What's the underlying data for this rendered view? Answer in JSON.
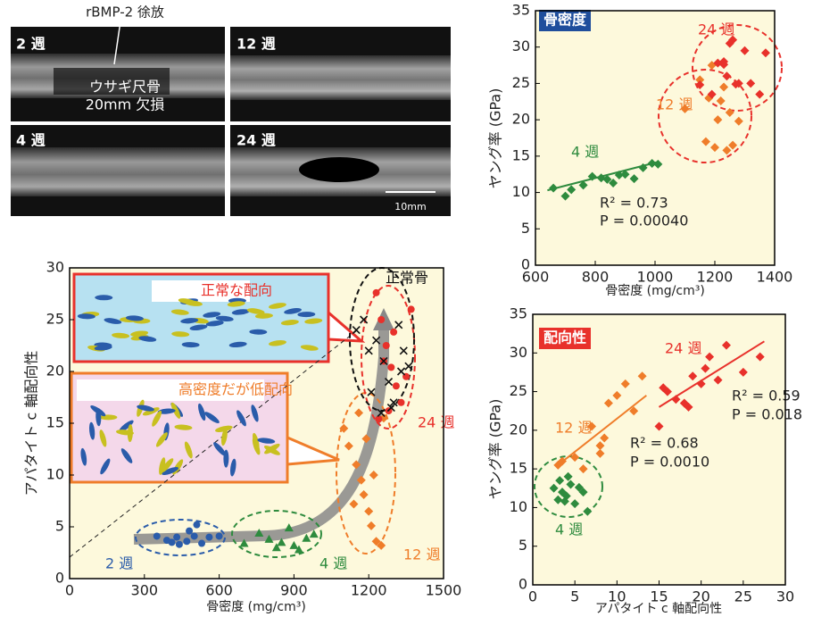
{
  "image_panel": {
    "labels": [
      "2 週",
      "12 週",
      "4 週",
      "24 週"
    ],
    "annotation": "rBMP-2 徐放",
    "defect": [
      "ウサギ尺骨",
      "20mm 欠損"
    ],
    "scale": "10mm"
  },
  "chart_data": [
    {
      "type": "scatter",
      "x_label": "骨密度 (mg/cm³)",
      "y_label": "アパタイト c 軸配向性",
      "xlim": [
        0,
        1500
      ],
      "xticks": [
        0,
        300,
        600,
        900,
        1200,
        1500
      ],
      "ylim": [
        0,
        30
      ],
      "yticks": [
        0,
        5,
        10,
        15,
        20,
        25,
        30
      ],
      "series": [
        {
          "name": "2 週",
          "color": "#2a5caa",
          "marker": "circle",
          "x": [
            350,
            390,
            430,
            470,
            500,
            480,
            510,
            530,
            560,
            600,
            440,
            410
          ],
          "y": [
            4.1,
            3.7,
            4.0,
            3.6,
            4.1,
            4.6,
            5.2,
            3.4,
            4.0,
            4.1,
            3.3,
            3.5
          ]
        },
        {
          "name": "4 週",
          "color": "#2e8b3e",
          "marker": "triangle",
          "x": [
            700,
            760,
            800,
            830,
            850,
            880,
            900,
            920,
            950,
            980
          ],
          "y": [
            3.4,
            4.4,
            3.8,
            3.0,
            3.5,
            4.9,
            3.2,
            2.8,
            3.9,
            4.3
          ]
        },
        {
          "name": "12 週",
          "color": "#ef7d2a",
          "marker": "diamond",
          "x": [
            1100,
            1120,
            1150,
            1170,
            1180,
            1200,
            1210,
            1230,
            1250,
            1160,
            1140,
            1190,
            1220,
            1260
          ],
          "y": [
            14.5,
            12.8,
            11.0,
            9.5,
            8.1,
            6.5,
            5.1,
            3.6,
            3.2,
            16.0,
            7.2,
            13.5,
            10.0,
            15.5
          ]
        },
        {
          "name": "24 週",
          "color": "#e8312b",
          "marker": "circle",
          "x": [
            1230,
            1250,
            1270,
            1290,
            1310,
            1330,
            1350,
            1370,
            1260,
            1300,
            1280,
            1240
          ],
          "y": [
            27.6,
            25.0,
            22.5,
            20.4,
            18.6,
            17.0,
            19.5,
            26.0,
            21.0,
            23.8,
            16.2,
            15.4
          ]
        },
        {
          "name": "正常骨",
          "color": "#111111",
          "marker": "x",
          "x": [
            1150,
            1180,
            1200,
            1230,
            1260,
            1280,
            1300,
            1320,
            1340,
            1360,
            1210,
            1250,
            1290,
            1330
          ],
          "y": [
            24,
            25,
            22,
            23,
            21,
            19,
            17,
            24.5,
            22,
            20.5,
            18,
            16,
            16.5,
            20
          ]
        }
      ],
      "annotations": [
        {
          "text": "2 週",
          "color": "#2a5caa"
        },
        {
          "text": "4 週",
          "color": "#2e8b3e"
        },
        {
          "text": "12 週",
          "color": "#ef7d2a"
        },
        {
          "text": "24 週",
          "color": "#e8312b"
        },
        {
          "text": "正常骨",
          "color": "#111111"
        },
        {
          "text": "正常な配向",
          "color": "#e8312b"
        },
        {
          "text": "高密度だが低配向",
          "color": "#ef7d2a"
        }
      ]
    },
    {
      "type": "scatter",
      "x_label": "骨密度 (mg/cm³)",
      "y_label": "ヤング率 (GPa)",
      "tag": "骨密度",
      "tag_color": "#1f4e9c",
      "xlim": [
        600,
        1400
      ],
      "xticks": [
        600,
        800,
        1000,
        1200,
        1400
      ],
      "ylim": [
        0,
        35
      ],
      "yticks": [
        0,
        5,
        10,
        15,
        20,
        25,
        30,
        35
      ],
      "series": [
        {
          "name": "4 週",
          "color": "#2e8b3e",
          "marker": "diamond",
          "x": [
            660,
            700,
            720,
            760,
            790,
            820,
            840,
            860,
            880,
            900,
            930,
            960,
            990,
            1010
          ],
          "y": [
            10.6,
            9.5,
            10.4,
            11.0,
            12.2,
            12.0,
            11.8,
            11.3,
            12.4,
            12.5,
            11.9,
            13.4,
            14.0,
            13.9
          ],
          "trend": {
            "x": [
              640,
              1010
            ],
            "y": [
              10.3,
              14.2
            ]
          }
        },
        {
          "name": "12 週",
          "color": "#ef7d2a",
          "marker": "diamond",
          "x": [
            1100,
            1150,
            1170,
            1180,
            1190,
            1200,
            1210,
            1220,
            1230,
            1240,
            1250,
            1260,
            1280
          ],
          "y": [
            21.5,
            25.5,
            17.0,
            23.0,
            27.5,
            16.2,
            20.0,
            22.6,
            24.5,
            15.8,
            21.0,
            16.5,
            19.8
          ]
        },
        {
          "name": "24 週",
          "color": "#e8312b",
          "marker": "diamond",
          "x": [
            1150,
            1190,
            1210,
            1230,
            1240,
            1250,
            1260,
            1280,
            1300,
            1320,
            1350,
            1370,
            1230,
            1270
          ],
          "y": [
            24.8,
            23.5,
            27.8,
            28.0,
            26.0,
            30.5,
            31.0,
            25.0,
            29.5,
            25.0,
            23.5,
            29.2,
            27.6,
            24.9
          ]
        }
      ],
      "annotations": [
        {
          "text": "4 週",
          "color": "#2e8b3e"
        },
        {
          "text": "12 週",
          "color": "#ef7d2a"
        },
        {
          "text": "24 週",
          "color": "#e8312b"
        },
        {
          "text": "R² = 0.73",
          "color": "#222222"
        },
        {
          "text": "P = 0.00040",
          "color": "#222222"
        }
      ]
    },
    {
      "type": "scatter",
      "x_label": "アパタイト c 軸配向性",
      "y_label": "ヤング率 (GPa)",
      "tag": "配向性",
      "tag_color": "#e8312b",
      "xlim": [
        0,
        30
      ],
      "xticks": [
        0,
        5,
        10,
        15,
        20,
        25,
        30
      ],
      "ylim": [
        0,
        35
      ],
      "yticks": [
        0,
        5,
        10,
        15,
        20,
        25,
        30,
        35
      ],
      "series": [
        {
          "name": "4 週",
          "color": "#2e8b3e",
          "marker": "diamond",
          "x": [
            2.5,
            3,
            3.2,
            3.5,
            4,
            4.5,
            5,
            5.5,
            6,
            6.5,
            3.8,
            4.2
          ],
          "y": [
            12.5,
            11,
            13.5,
            12,
            11.5,
            13,
            10.5,
            12.6,
            12,
            9.5,
            10.8,
            14
          ]
        },
        {
          "name": "12 週",
          "color": "#ef7d2a",
          "marker": "diamond",
          "x": [
            3,
            3.5,
            5,
            6,
            7,
            8,
            8.5,
            9,
            10,
            11,
            12,
            13,
            8
          ],
          "y": [
            15.5,
            16,
            16.5,
            15,
            20.5,
            18,
            19,
            23.5,
            24.5,
            26,
            22.5,
            27,
            17
          ],
          "trend": {
            "x": [
              3,
              13.5
            ],
            "y": [
              15.5,
              24.5
            ]
          }
        },
        {
          "name": "24 週",
          "color": "#e8312b",
          "marker": "diamond",
          "x": [
            15,
            15.5,
            16,
            17,
            18,
            18.5,
            19,
            20,
            20.5,
            21,
            22,
            23,
            25,
            27
          ],
          "y": [
            20.5,
            25.5,
            25,
            24,
            23.5,
            23,
            27,
            26,
            28,
            29.5,
            26.5,
            31,
            27.5,
            29.5
          ],
          "trend": {
            "x": [
              15,
              27.5
            ],
            "y": [
              23,
              31.5
            ]
          }
        }
      ],
      "annotations": [
        {
          "text": "24 週",
          "color": "#e8312b"
        },
        {
          "text": "12 週",
          "color": "#ef7d2a"
        },
        {
          "text": "4 週",
          "color": "#2e8b3e"
        },
        {
          "text": "R² = 0.68",
          "color": "#222222"
        },
        {
          "text": "P = 0.0010",
          "color": "#222222"
        },
        {
          "text": "R² = 0.59",
          "color": "#222222"
        },
        {
          "text": "P = 0.018",
          "color": "#222222"
        }
      ]
    }
  ]
}
